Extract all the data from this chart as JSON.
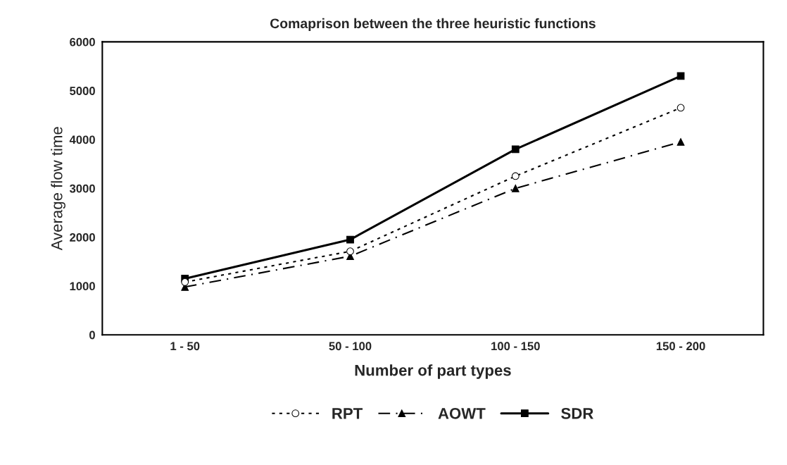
{
  "chart_data": {
    "type": "line",
    "title": "Comaprison between the three heuristic functions",
    "xlabel": "Number of part types",
    "ylabel": "Average flow time",
    "categories": [
      "1 - 50",
      "50 - 100",
      "100 - 150",
      "150 - 200"
    ],
    "series": [
      {
        "name": "RPT",
        "color": "#000000",
        "values": [
          1080,
          1710,
          3250,
          4650
        ],
        "marker": "circle",
        "line_style": "dotted"
      },
      {
        "name": "AOWT",
        "color": "#000000",
        "values": [
          980,
          1610,
          3000,
          3950
        ],
        "marker": "triangle",
        "line_style": "dashed"
      },
      {
        "name": "SDR",
        "color": "#000000",
        "values": [
          1150,
          1950,
          3800,
          5300
        ],
        "marker": "square",
        "line_style": "solid"
      }
    ],
    "ylim": [
      0,
      6000
    ],
    "yticks": [
      0,
      1000,
      2000,
      3000,
      4000,
      5000,
      6000
    ],
    "grid": false,
    "legend": "bottom"
  }
}
